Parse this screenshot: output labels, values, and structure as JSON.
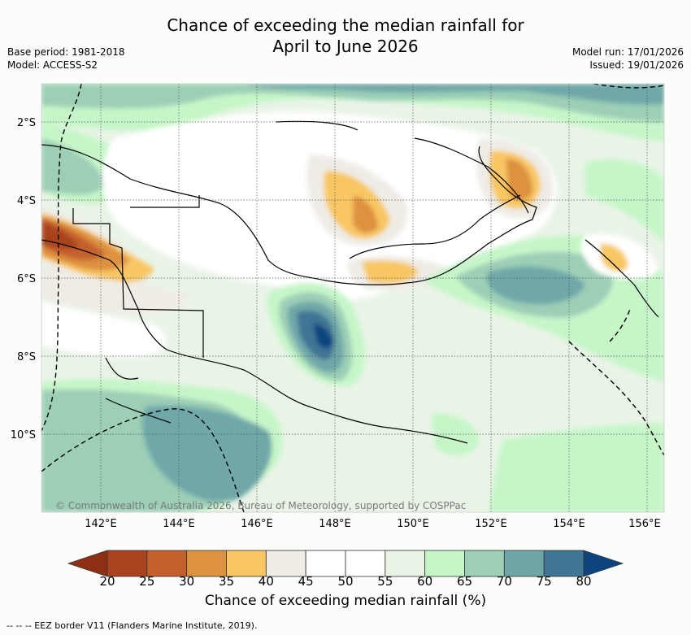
{
  "title_line1": "Chance of exceeding the median rainfall for",
  "title_line2": "April to June 2026",
  "meta": {
    "base_period": "Base period: 1981-2018",
    "model": "Model: ACCESS-S2",
    "model_run": "Model run: 17/01/2026",
    "issued": "Issued: 19/01/2026"
  },
  "map": {
    "lat_labels": [
      "2°S",
      "4°S",
      "6°S",
      "8°S",
      "10°S"
    ],
    "lon_labels": [
      "142°E",
      "144°E",
      "146°E",
      "148°E",
      "150°E",
      "152°E",
      "154°E",
      "156°E"
    ],
    "copyright": "© Commonwealth of Australia 2026, Bureau of Meteorology, supported by COSPPac"
  },
  "colorbar": {
    "ticks": [
      "20",
      "25",
      "30",
      "35",
      "40",
      "45",
      "50",
      "55",
      "60",
      "65",
      "70",
      "75",
      "80"
    ],
    "colors": [
      "#a8421f",
      "#c4602e",
      "#de9140",
      "#f8c764",
      "#efece6",
      "#ffffff",
      "#ffffff",
      "#e9f4e7",
      "#c6f6c8",
      "#9ccfb6",
      "#6fa7a9",
      "#3f7595"
    ],
    "low_arrow_color": "#8f3015",
    "high_arrow_color": "#0d4480",
    "label": "Chance of exceeding median rainfall (%)"
  },
  "footer": "--  --  -- EEZ border V11 (Flanders Marine Institute, 2019)."
}
